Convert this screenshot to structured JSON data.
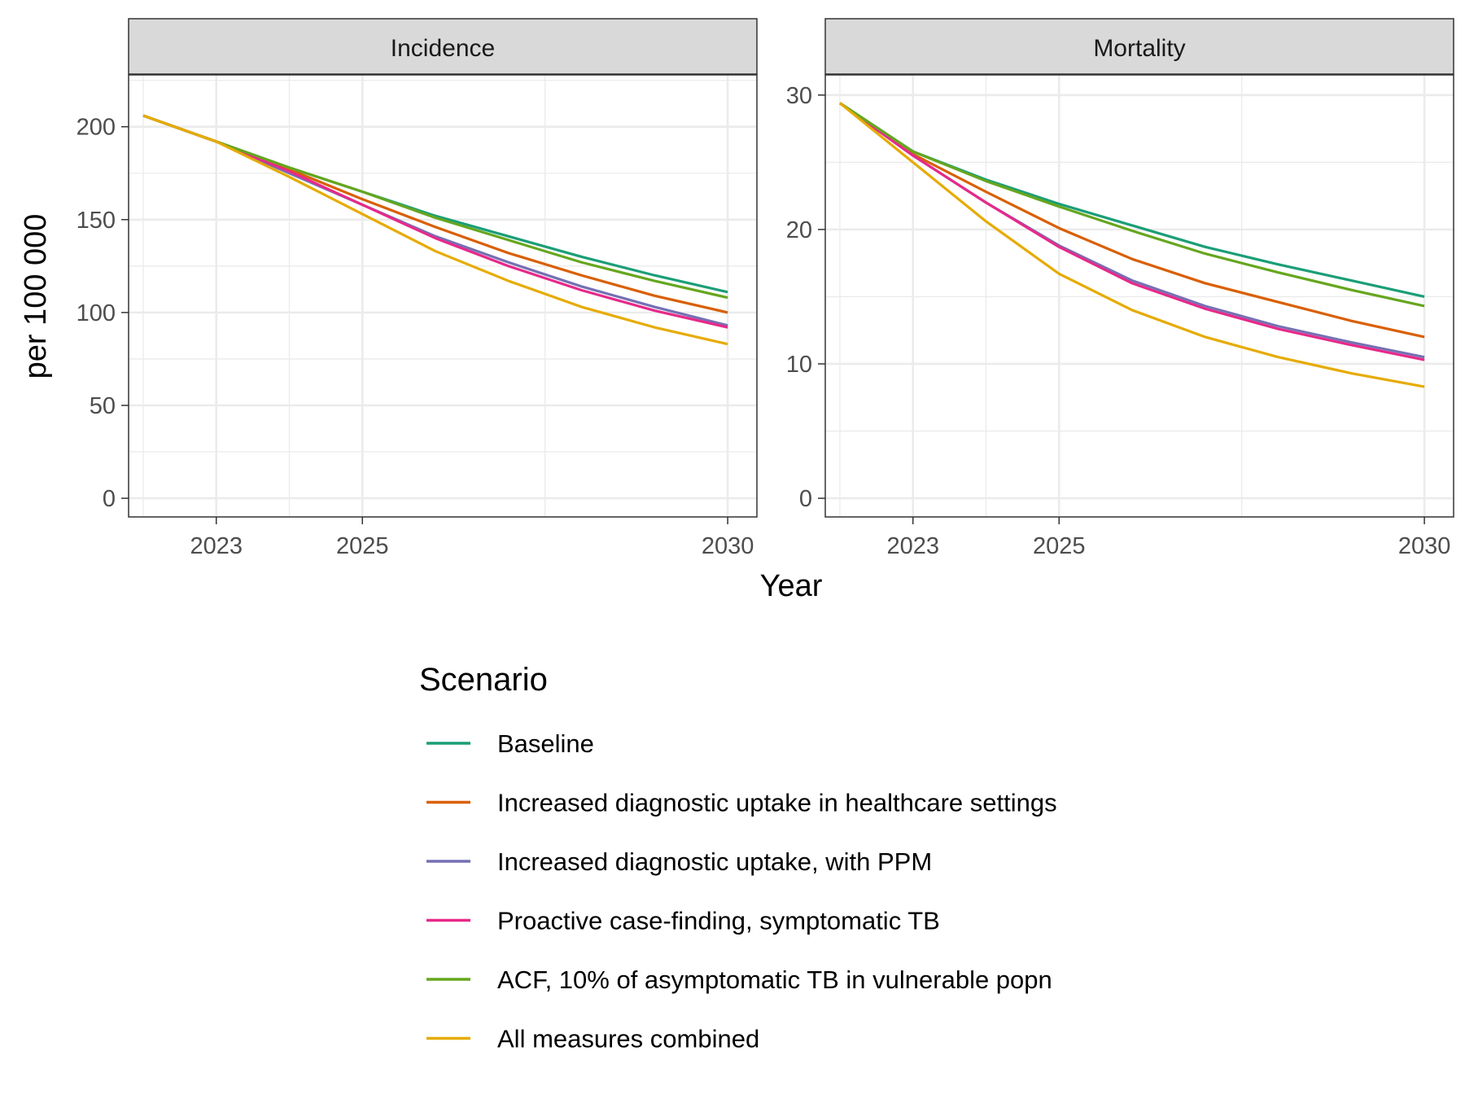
{
  "chart_data": {
    "type": "line",
    "xlabel": "Year",
    "ylabel": "per 100 000",
    "x": [
      2022,
      2023,
      2024,
      2025,
      2026,
      2027,
      2028,
      2029,
      2030
    ],
    "x_ticks": [
      2023,
      2025,
      2030
    ],
    "grid": true,
    "legend": {
      "title": "Scenario",
      "placement": "bottom"
    },
    "panels": [
      {
        "title": "Incidence",
        "ylim": [
          0,
          220
        ],
        "y_ticks": [
          0,
          50,
          100,
          150,
          200
        ],
        "series": [
          {
            "name": "Baseline",
            "color": "#1b9e77",
            "values": [
              206,
              192,
              178,
              165,
              152,
              141,
              130,
              120,
              111
            ]
          },
          {
            "name": "Increased diagnostic uptake in healthcare settings",
            "color": "#d95f02",
            "values": [
              206,
              192,
              177,
              161,
              146,
              132,
              120,
              109,
              100
            ]
          },
          {
            "name": "Increased diagnostic uptake, with PPM",
            "color": "#7570b3",
            "values": [
              206,
              192,
              175,
              158,
              141,
              127,
              114,
              103,
              93
            ]
          },
          {
            "name": "Proactive case-finding, symptomatic TB",
            "color": "#e7298a",
            "values": [
              206,
              192,
              176,
              158,
              140,
              125,
              112,
              101,
              92
            ]
          },
          {
            "name": "ACF, 10% of asymptomatic TB in vulnerable popn",
            "color": "#66a61e",
            "values": [
              206,
              192,
              178,
              165,
              151,
              139,
              127,
              117,
              108
            ]
          },
          {
            "name": "All measures combined",
            "color": "#e6ab02",
            "values": [
              206,
              192,
              173,
              153,
              133,
              117,
              103,
              92,
              83
            ]
          }
        ]
      },
      {
        "title": "Mortality",
        "ylim": [
          0,
          30
        ],
        "y_ticks": [
          0,
          10,
          20,
          30
        ],
        "series": [
          {
            "name": "Baseline",
            "color": "#1b9e77",
            "values": [
              29.4,
              25.8,
              23.7,
              21.9,
              20.3,
              18.7,
              17.4,
              16.2,
              15.0
            ]
          },
          {
            "name": "Increased diagnostic uptake in healthcare settings",
            "color": "#d95f02",
            "values": [
              29.4,
              25.6,
              22.8,
              20.1,
              17.8,
              16.0,
              14.6,
              13.2,
              12.0
            ]
          },
          {
            "name": "Increased diagnostic uptake, with PPM",
            "color": "#7570b3",
            "values": [
              29.4,
              25.5,
              22.0,
              18.8,
              16.2,
              14.3,
              12.8,
              11.6,
              10.5
            ]
          },
          {
            "name": "Proactive case-finding, symptomatic TB",
            "color": "#e7298a",
            "values": [
              29.4,
              25.5,
              22.0,
              18.7,
              16.0,
              14.1,
              12.6,
              11.4,
              10.3
            ]
          },
          {
            "name": "ACF, 10% of asymptomatic TB in vulnerable popn",
            "color": "#66a61e",
            "values": [
              29.4,
              25.8,
              23.6,
              21.7,
              19.9,
              18.2,
              16.8,
              15.5,
              14.3
            ]
          },
          {
            "name": "All measures combined",
            "color": "#e6ab02",
            "values": [
              29.4,
              25.0,
              20.6,
              16.7,
              14.0,
              12.0,
              10.5,
              9.3,
              8.3
            ]
          }
        ]
      }
    ]
  }
}
